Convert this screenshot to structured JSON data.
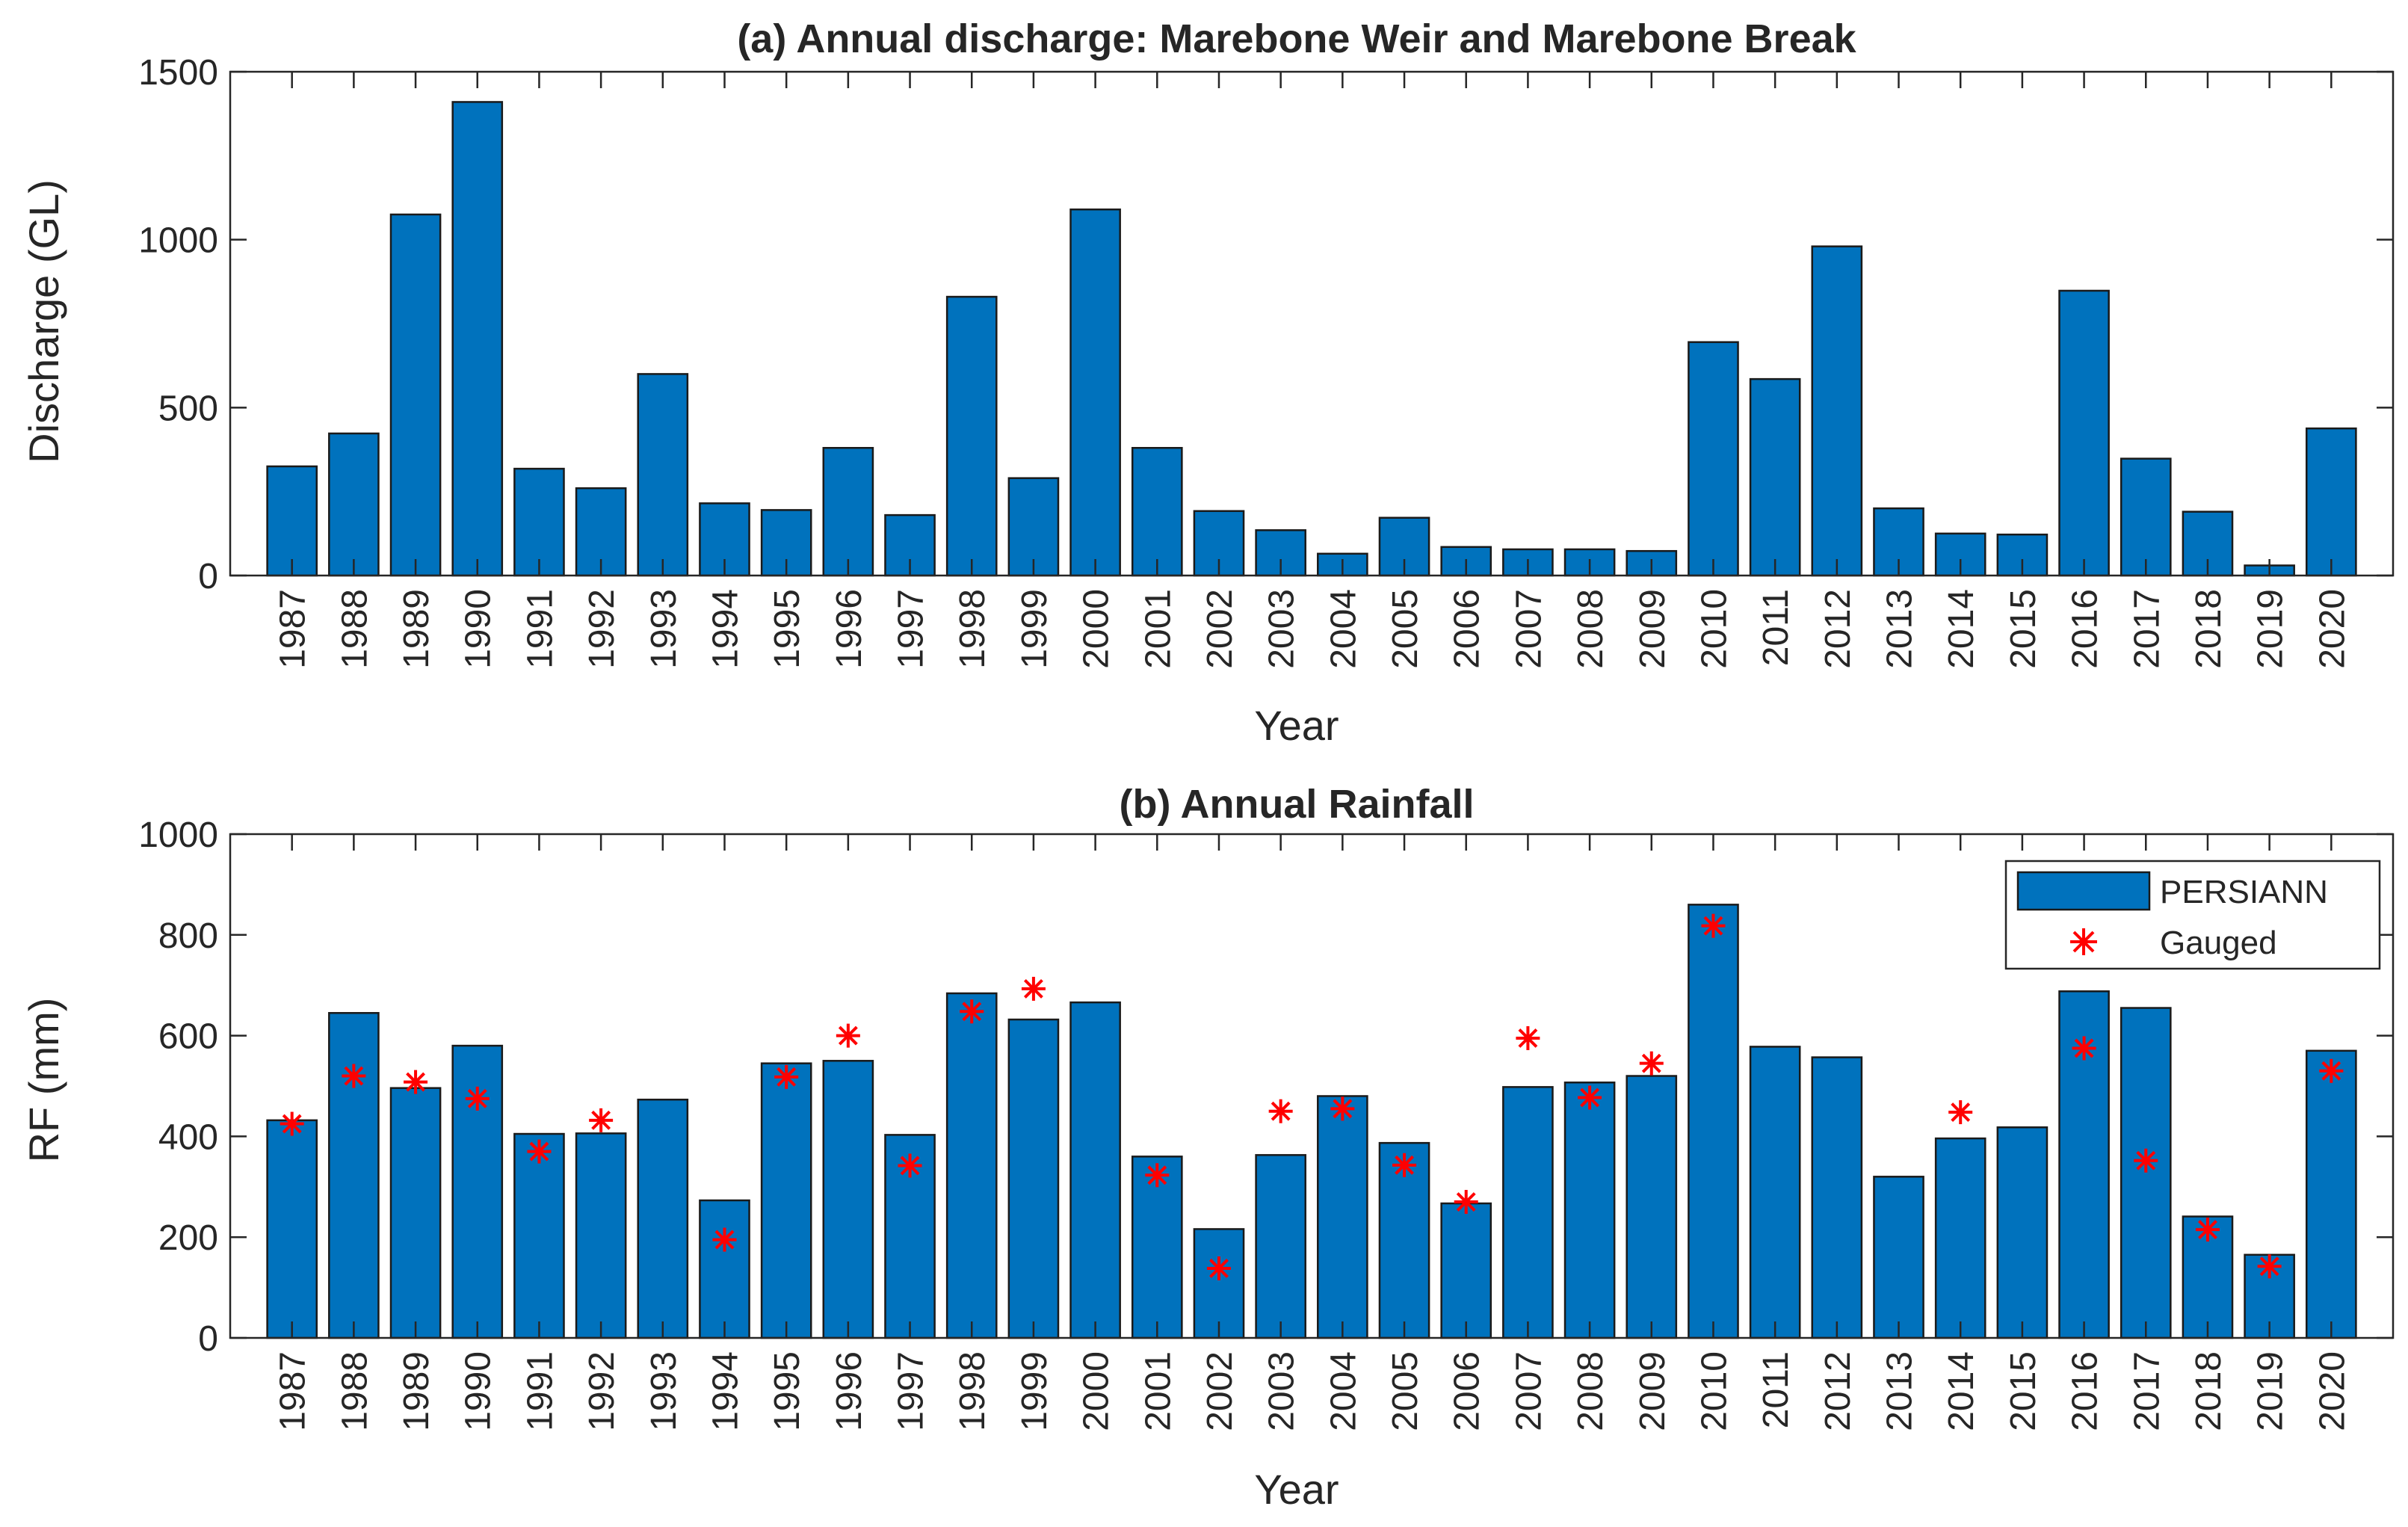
{
  "chart_data": [
    {
      "id": "a",
      "type": "bar",
      "title": "(a) Annual discharge: Marebone Weir and Marebone Break",
      "xlabel": "Year",
      "ylabel": "Discharge (GL)",
      "ylim": [
        0,
        1500
      ],
      "yticks": [
        0,
        500,
        1000,
        1500
      ],
      "grid": false,
      "categories": [
        "1987",
        "1988",
        "1989",
        "1990",
        "1991",
        "1992",
        "1993",
        "1994",
        "1995",
        "1996",
        "1997",
        "1998",
        "1999",
        "2000",
        "2001",
        "2002",
        "2003",
        "2004",
        "2005",
        "2006",
        "2007",
        "2008",
        "2009",
        "2010",
        "2011",
        "2012",
        "2013",
        "2014",
        "2015",
        "2016",
        "2017",
        "2018",
        "2019",
        "2020"
      ],
      "series": [
        {
          "name": "Discharge",
          "kind": "bar",
          "color": "#0072BD",
          "values": [
            325,
            423,
            1075,
            1410,
            318,
            260,
            600,
            215,
            195,
            380,
            180,
            830,
            290,
            1090,
            380,
            192,
            135,
            65,
            172,
            85,
            78,
            78,
            73,
            695,
            585,
            980,
            200,
            125,
            122,
            848,
            348,
            190,
            30,
            438
          ]
        }
      ]
    },
    {
      "id": "b",
      "type": "bar",
      "title": "(b) Annual Rainfall",
      "xlabel": "Year",
      "ylabel": "RF (mm)",
      "ylim": [
        0,
        1000
      ],
      "yticks": [
        0,
        200,
        400,
        600,
        800,
        1000
      ],
      "grid": false,
      "legend_position": "top-right",
      "categories": [
        "1987",
        "1988",
        "1989",
        "1990",
        "1991",
        "1992",
        "1993",
        "1994",
        "1995",
        "1996",
        "1997",
        "1998",
        "1999",
        "2000",
        "2001",
        "2002",
        "2003",
        "2004",
        "2005",
        "2006",
        "2007",
        "2008",
        "2009",
        "2010",
        "2011",
        "2012",
        "2013",
        "2014",
        "2015",
        "2016",
        "2017",
        "2018",
        "2019",
        "2020"
      ],
      "series": [
        {
          "name": "PERSIANN",
          "kind": "bar",
          "color": "#0072BD",
          "values": [
            432,
            645,
            496,
            580,
            405,
            406,
            473,
            273,
            545,
            550,
            403,
            684,
            632,
            666,
            360,
            216,
            363,
            480,
            387,
            267,
            498,
            507,
            520,
            860,
            578,
            557,
            320,
            396,
            418,
            688,
            655,
            241,
            165,
            570
          ]
        },
        {
          "name": "Gauged",
          "kind": "scatter",
          "marker": "asterisk",
          "color": "#FF0000",
          "values": [
            425,
            520,
            508,
            475,
            370,
            432,
            null,
            195,
            518,
            600,
            342,
            648,
            693,
            null,
            323,
            138,
            450,
            455,
            343,
            270,
            595,
            477,
            545,
            818,
            null,
            null,
            null,
            448,
            null,
            575,
            352,
            215,
            142,
            530
          ]
        }
      ]
    }
  ]
}
